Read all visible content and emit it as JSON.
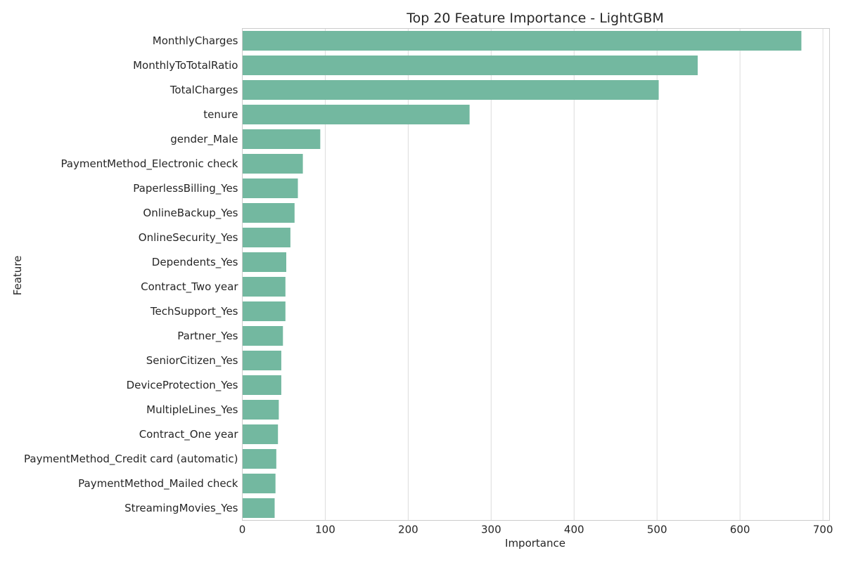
{
  "chart_data": {
    "type": "bar",
    "orientation": "horizontal",
    "title": "Top 20 Feature Importance - LightGBM",
    "xlabel": "Importance",
    "ylabel": "Feature",
    "xlim": [
      0,
      700
    ],
    "xticks": [
      0,
      100,
      200,
      300,
      400,
      500,
      600,
      700
    ],
    "grid": true,
    "bar_color": "#73b8a0",
    "categories": [
      "MonthlyCharges",
      "MonthlyToTotalRatio",
      "TotalCharges",
      "tenure",
      "gender_Male",
      "PaymentMethod_Electronic check",
      "PaperlessBilling_Yes",
      "OnlineBackup_Yes",
      "OnlineSecurity_Yes",
      "Dependents_Yes",
      "Contract_Two year",
      "TechSupport_Yes",
      "Partner_Yes",
      "SeniorCitizen_Yes",
      "DeviceProtection_Yes",
      "MultipleLines_Yes",
      "Contract_One year",
      "PaymentMethod_Credit card (automatic)",
      "PaymentMethod_Mailed check",
      "StreamingMovies_Yes"
    ],
    "values": [
      674,
      549,
      502,
      274,
      94,
      73,
      67,
      63,
      58,
      53,
      52,
      52,
      49,
      47,
      47,
      44,
      43,
      41,
      40,
      39
    ]
  }
}
